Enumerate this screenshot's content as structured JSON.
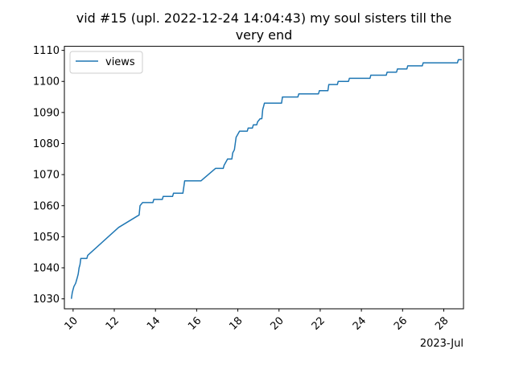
{
  "chart_data": {
    "type": "line",
    "title_lines": [
      "vid #15 (upl. 2022-12-24 14:04:43) my soul sisters till the",
      "very end"
    ],
    "xlabel": "",
    "ylabel": "",
    "x_offset_label": "2023-Jul",
    "xlim": [
      "2023-07-09T13:50",
      "2023-07-28T23:00"
    ],
    "ylim": [
      1026.8,
      1111.3
    ],
    "x_ticks": [
      {
        "x": "2023-07-10",
        "label": "10"
      },
      {
        "x": "2023-07-12",
        "label": "12"
      },
      {
        "x": "2023-07-14",
        "label": "14"
      },
      {
        "x": "2023-07-16",
        "label": "16"
      },
      {
        "x": "2023-07-18",
        "label": "18"
      },
      {
        "x": "2023-07-20",
        "label": "20"
      },
      {
        "x": "2023-07-22",
        "label": "22"
      },
      {
        "x": "2023-07-24",
        "label": "24"
      },
      {
        "x": "2023-07-26",
        "label": "26"
      },
      {
        "x": "2023-07-28",
        "label": "28"
      }
    ],
    "y_ticks": [
      1030,
      1040,
      1050,
      1060,
      1070,
      1080,
      1090,
      1100,
      1110
    ],
    "grid": false,
    "legend_position": "top-left",
    "color": "#1f77b4",
    "series": [
      {
        "name": "views",
        "points": [
          [
            "2023-07-09T22:00",
            1030
          ],
          [
            "2023-07-09T23:00",
            1032
          ],
          [
            "2023-07-10T00:00",
            1033
          ],
          [
            "2023-07-10T01:00",
            1034
          ],
          [
            "2023-07-10T03:00",
            1035
          ],
          [
            "2023-07-10T04:00",
            1036
          ],
          [
            "2023-07-10T05:00",
            1037
          ],
          [
            "2023-07-10T06:00",
            1038
          ],
          [
            "2023-07-10T07:00",
            1040
          ],
          [
            "2023-07-10T08:00",
            1041
          ],
          [
            "2023-07-10T09:00",
            1043
          ],
          [
            "2023-07-10T16:00",
            1043
          ],
          [
            "2023-07-10T17:00",
            1044
          ],
          [
            "2023-07-12T05:00",
            1053
          ],
          [
            "2023-07-13T05:00",
            1057
          ],
          [
            "2023-07-13T06:00",
            1060
          ],
          [
            "2023-07-13T09:00",
            1061
          ],
          [
            "2023-07-13T21:00",
            1061
          ],
          [
            "2023-07-13T22:00",
            1062
          ],
          [
            "2023-07-14T08:00",
            1062
          ],
          [
            "2023-07-14T09:00",
            1063
          ],
          [
            "2023-07-14T20:00",
            1063
          ],
          [
            "2023-07-14T21:00",
            1064
          ],
          [
            "2023-07-15T08:00",
            1064
          ],
          [
            "2023-07-15T09:00",
            1066
          ],
          [
            "2023-07-15T10:00",
            1068
          ],
          [
            "2023-07-16T05:00",
            1068
          ],
          [
            "2023-07-16T22:00",
            1072
          ],
          [
            "2023-07-17T07:00",
            1072
          ],
          [
            "2023-07-17T08:00",
            1073
          ],
          [
            "2023-07-17T10:00",
            1074
          ],
          [
            "2023-07-17T12:00",
            1075
          ],
          [
            "2023-07-17T17:00",
            1075
          ],
          [
            "2023-07-17T18:00",
            1077
          ],
          [
            "2023-07-17T20:00",
            1078
          ],
          [
            "2023-07-17T22:00",
            1082
          ],
          [
            "2023-07-18T00:00",
            1083
          ],
          [
            "2023-07-18T02:00",
            1084
          ],
          [
            "2023-07-18T11:00",
            1084
          ],
          [
            "2023-07-18T12:00",
            1085
          ],
          [
            "2023-07-18T17:00",
            1085
          ],
          [
            "2023-07-18T18:00",
            1086
          ],
          [
            "2023-07-18T22:00",
            1086
          ],
          [
            "2023-07-18T23:00",
            1087
          ],
          [
            "2023-07-19T02:00",
            1088
          ],
          [
            "2023-07-19T04:00",
            1088
          ],
          [
            "2023-07-19T05:00",
            1091
          ],
          [
            "2023-07-19T06:00",
            1092
          ],
          [
            "2023-07-19T07:00",
            1093
          ],
          [
            "2023-07-20T03:00",
            1093
          ],
          [
            "2023-07-20T04:00",
            1095
          ],
          [
            "2023-07-20T22:00",
            1095
          ],
          [
            "2023-07-20T23:00",
            1096
          ],
          [
            "2023-07-21T22:00",
            1096
          ],
          [
            "2023-07-21T23:00",
            1097
          ],
          [
            "2023-07-22T09:00",
            1097
          ],
          [
            "2023-07-22T10:00",
            1099
          ],
          [
            "2023-07-22T20:00",
            1099
          ],
          [
            "2023-07-22T21:00",
            1100
          ],
          [
            "2023-07-23T09:00",
            1100
          ],
          [
            "2023-07-23T10:00",
            1101
          ],
          [
            "2023-07-24T10:00",
            1101
          ],
          [
            "2023-07-24T11:00",
            1102
          ],
          [
            "2023-07-25T05:00",
            1102
          ],
          [
            "2023-07-25T06:00",
            1103
          ],
          [
            "2023-07-25T17:00",
            1103
          ],
          [
            "2023-07-25T18:00",
            1104
          ],
          [
            "2023-07-26T05:00",
            1104
          ],
          [
            "2023-07-26T06:00",
            1105
          ],
          [
            "2023-07-26T23:00",
            1105
          ],
          [
            "2023-07-27T00:00",
            1106
          ],
          [
            "2023-07-28T16:00",
            1106
          ],
          [
            "2023-07-28T17:00",
            1107
          ],
          [
            "2023-07-28T21:00",
            1107
          ]
        ]
      }
    ]
  }
}
